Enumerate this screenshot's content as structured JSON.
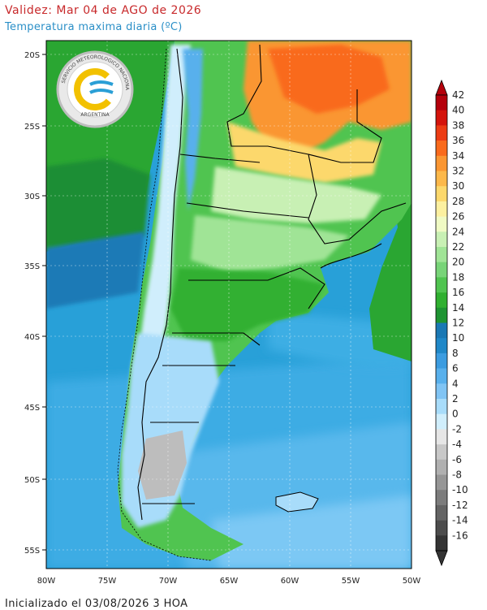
{
  "header": {
    "title": "Validez: Mar 04 de AGO de 2026",
    "subtitle": "Temperatura maxima diaria (ºC)"
  },
  "footer": {
    "init": "Inicializado el 03/08/2026 3 HOA"
  },
  "logo": {
    "ring_text": "SERVICIO METEOROLOGICO NACIONAL",
    "country": "ARGENTINA",
    "colors": {
      "ring": "#bdbdbd",
      "sun": "#f2c100",
      "wave": "#2a9fd6"
    }
  },
  "axes": {
    "lat_labels": [
      "20S",
      "25S",
      "30S",
      "35S",
      "40S",
      "45S",
      "50S",
      "55S"
    ],
    "lon_labels": [
      "80W",
      "75W",
      "70W",
      "65W",
      "60W",
      "55W",
      "50W"
    ]
  },
  "colorbar": {
    "labels": [
      "42",
      "40",
      "38",
      "36",
      "34",
      "32",
      "30",
      "28",
      "26",
      "24",
      "22",
      "20",
      "18",
      "16",
      "14",
      "12",
      "10",
      "8",
      "6",
      "4",
      "2",
      "0",
      "-2",
      "-4",
      "-6",
      "-8",
      "-10",
      "-12",
      "-14",
      "-16"
    ],
    "colors": [
      "#b4000b",
      "#d4140c",
      "#ec3c14",
      "#f96a1c",
      "#fa9632",
      "#fcb84a",
      "#fcd86c",
      "#fcf0a0",
      "#f0fac4",
      "#c8f0b4",
      "#a0e496",
      "#78d478",
      "#50c450",
      "#30b030",
      "#1e9432",
      "#1a78b4",
      "#2088c8",
      "#3c9ce0",
      "#58b0ec",
      "#80c4f4",
      "#a8dcfa",
      "#d0eefc",
      "#e6e6e6",
      "#c8c8c8",
      "#b0b0b0",
      "#969696",
      "#7c7c7c",
      "#646464",
      "#4c4c4c",
      "#343434"
    ]
  }
}
